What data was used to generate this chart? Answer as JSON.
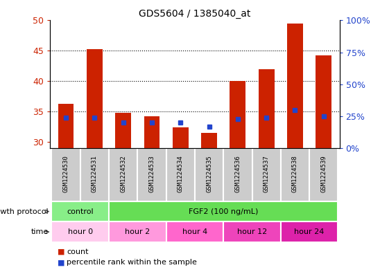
{
  "title": "GDS5604 / 1385040_at",
  "samples": [
    "GSM1224530",
    "GSM1224531",
    "GSM1224532",
    "GSM1224533",
    "GSM1224534",
    "GSM1224535",
    "GSM1224536",
    "GSM1224537",
    "GSM1224538",
    "GSM1224539"
  ],
  "count_values": [
    36.3,
    45.3,
    34.8,
    34.3,
    32.4,
    31.5,
    40.1,
    42.0,
    49.5,
    44.2
  ],
  "percentile_pct": [
    24,
    24,
    20,
    20,
    20,
    17,
    23,
    24,
    30,
    25
  ],
  "ylim_left": [
    29,
    50
  ],
  "ylim_right": [
    0,
    100
  ],
  "yticks_left": [
    30,
    35,
    40,
    45,
    50
  ],
  "yticks_right": [
    0,
    25,
    50,
    75,
    100
  ],
  "ytick_labels_right": [
    "0%",
    "25%",
    "50%",
    "75%",
    "100%"
  ],
  "bar_bottom": 29,
  "bar_color": "#cc2200",
  "dot_color": "#2244cc",
  "grid_dotted_at": [
    35,
    40,
    45
  ],
  "growth_protocol_groups": [
    {
      "label": "control",
      "start": 0,
      "end": 2,
      "color": "#88ee88"
    },
    {
      "label": "FGF2 (100 ng/mL)",
      "start": 2,
      "end": 10,
      "color": "#66dd55"
    }
  ],
  "time_colors": [
    "#ffccee",
    "#ff99dd",
    "#ff66cc",
    "#ee44bb",
    "#dd22aa"
  ],
  "time_groups": [
    {
      "label": "hour 0",
      "start": 0,
      "end": 2
    },
    {
      "label": "hour 2",
      "start": 2,
      "end": 4
    },
    {
      "label": "hour 4",
      "start": 4,
      "end": 6
    },
    {
      "label": "hour 12",
      "start": 6,
      "end": 8
    },
    {
      "label": "hour 24",
      "start": 8,
      "end": 10
    }
  ],
  "legend_count_label": "count",
  "legend_percentile_label": "percentile rank within the sample",
  "left_label_color": "#cc2200",
  "right_label_color": "#2244cc",
  "growth_label": "growth protocol",
  "time_label": "time",
  "sample_cell_color": "#cccccc",
  "sample_cell_edge": "#ffffff"
}
